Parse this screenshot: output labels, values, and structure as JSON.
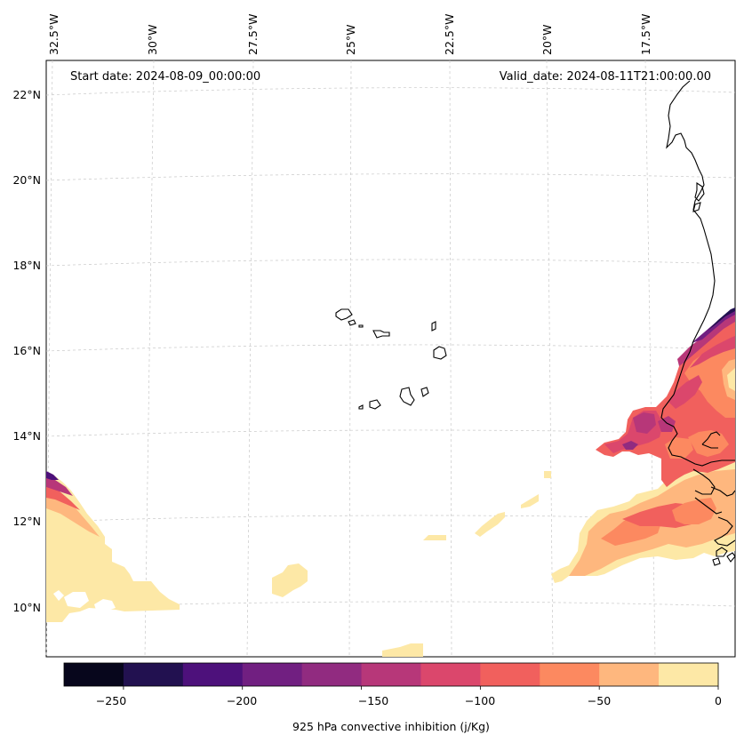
{
  "map": {
    "start_date": "Start date: 2024-08-09_00:00:00",
    "valid_date": "Valid_date: 2024-08-11T21:00:00.00",
    "lon_labels": [
      "32.5°W",
      "30°W",
      "27.5°W",
      "25°W",
      "22.5°W",
      "20°W",
      "17.5°W"
    ],
    "lat_labels": [
      "22°N",
      "20°N",
      "18°N",
      "16°N",
      "14°N",
      "12°N",
      "10°N"
    ]
  },
  "colorbar": {
    "label": "925 hPa convective inhibition (j/Kg)",
    "tick_labels": [
      "−250",
      "−200",
      "−150",
      "−100",
      "−50",
      "0"
    ],
    "range": [
      -275,
      0
    ],
    "step": 25,
    "colors": [
      "#07061c",
      "#221150",
      "#4d117b",
      "#711f81",
      "#912b80",
      "#b73779",
      "#db476c",
      "#f1605d",
      "#fc8960",
      "#feb77e",
      "#fde8a6"
    ]
  },
  "chart_data": {
    "type": "filled-contour",
    "title": "",
    "variable": "925 hPa convective inhibition",
    "units": "j/Kg",
    "levels": [
      -275,
      -250,
      -225,
      -200,
      -175,
      -150,
      -125,
      -100,
      -75,
      -50,
      -25,
      0
    ],
    "lon_range": [
      -33,
      -15.5
    ],
    "lat_range": [
      9,
      22.7
    ]
  }
}
